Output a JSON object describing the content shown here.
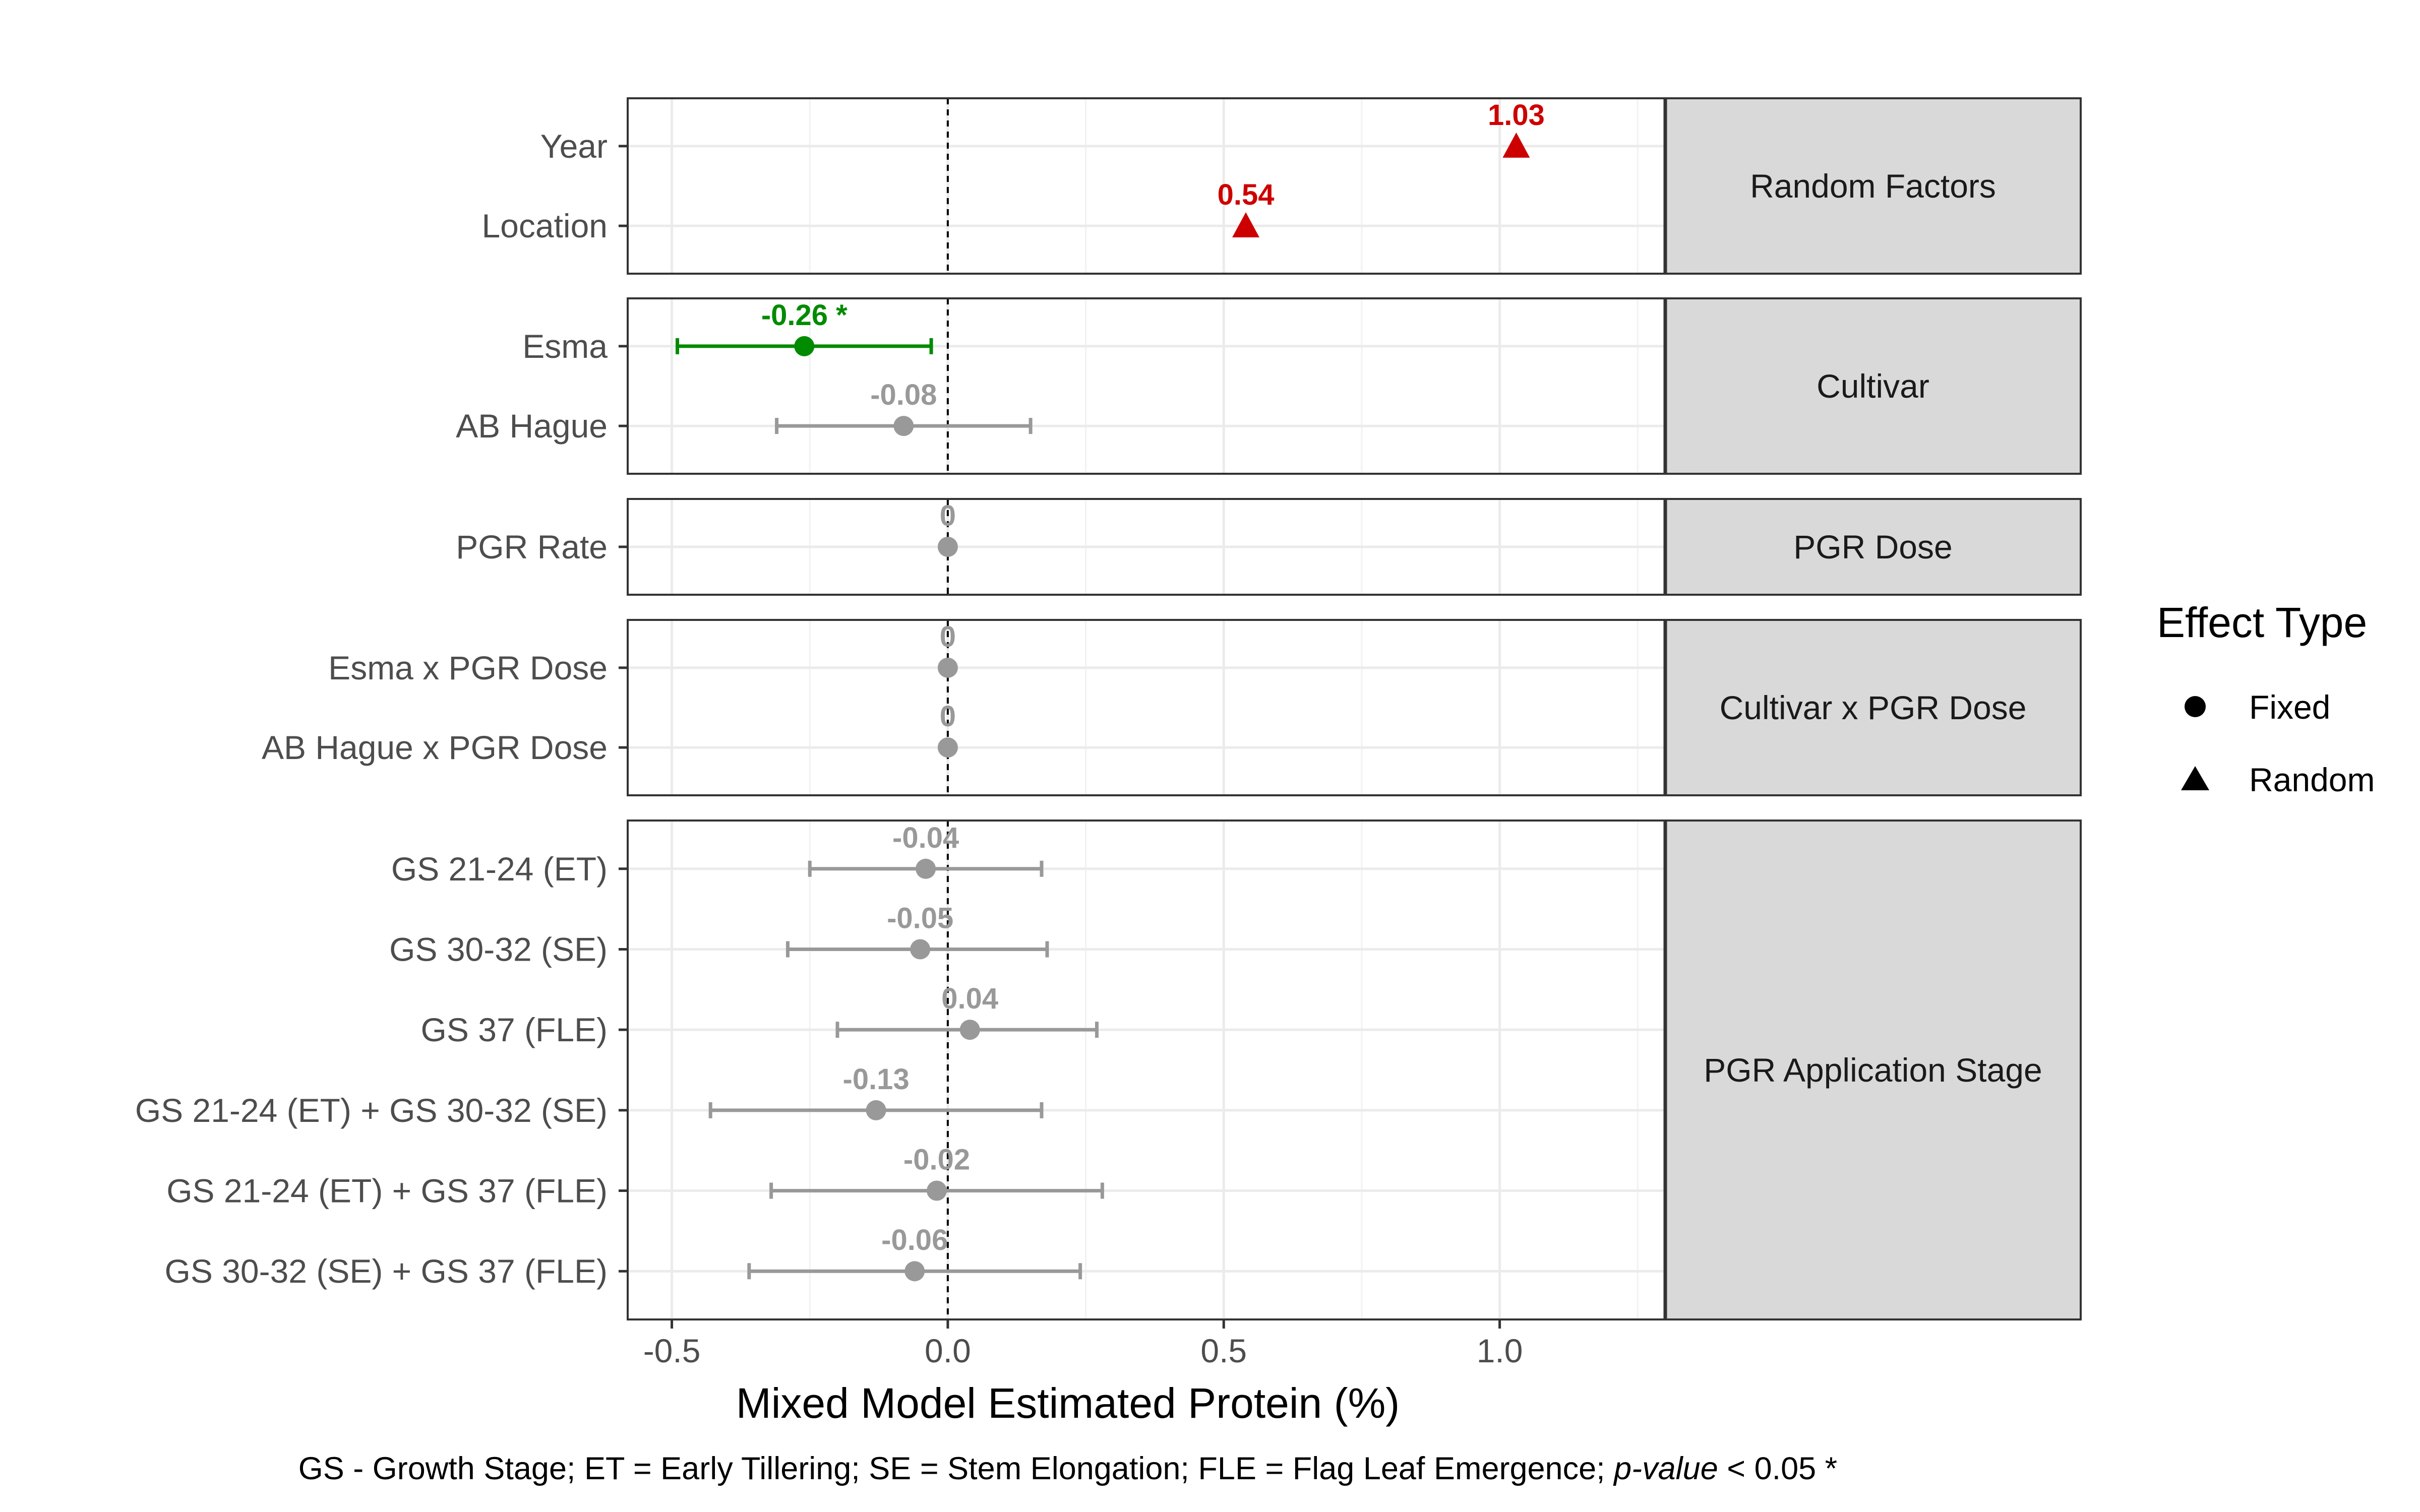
{
  "chart_data": {
    "type": "scatter",
    "subtype": "forest-plot-with-error-bars",
    "xlabel": "Mixed Model Estimated Protein (%)",
    "xlim": [
      -0.58,
      1.3
    ],
    "xticks": [
      -0.5,
      0.0,
      0.5,
      1.0
    ],
    "xtick_labels": [
      "-0.5",
      "0.0",
      "0.5",
      "1.0"
    ],
    "reference_line_x": 0,
    "grid": true,
    "colors": {
      "significant": "#008B00",
      "nonsignificant": "#999999",
      "random": "#CD0000"
    },
    "panels": [
      {
        "facet": "Random Factors",
        "rows": [
          {
            "term": "Year",
            "estimate": 1.03,
            "label": "1.03",
            "effect": "Random",
            "color": "random"
          },
          {
            "term": "Location",
            "estimate": 0.54,
            "label": "0.54",
            "effect": "Random",
            "color": "random"
          }
        ]
      },
      {
        "facet": "Cultivar",
        "rows": [
          {
            "term": "Esma",
            "estimate": -0.26,
            "ci": [
              -0.49,
              -0.03
            ],
            "label": "-0.26 *",
            "effect": "Fixed",
            "color": "significant"
          },
          {
            "term": "AB Hague",
            "estimate": -0.08,
            "ci": [
              -0.31,
              0.15
            ],
            "label": "-0.08",
            "effect": "Fixed",
            "color": "nonsignificant"
          }
        ]
      },
      {
        "facet": "PGR Dose",
        "rows": [
          {
            "term": "PGR Rate",
            "estimate": 0.0,
            "ci": [
              0.0,
              0.0
            ],
            "label": "0",
            "effect": "Fixed",
            "color": "nonsignificant"
          }
        ]
      },
      {
        "facet": "Cultivar x PGR Dose",
        "rows": [
          {
            "term": "Esma x PGR Dose",
            "estimate": 0.0,
            "ci": [
              0.0,
              0.0
            ],
            "label": "0",
            "effect": "Fixed",
            "color": "nonsignificant"
          },
          {
            "term": "AB Hague x PGR Dose",
            "estimate": 0.0,
            "ci": [
              0.0,
              0.0
            ],
            "label": "0",
            "effect": "Fixed",
            "color": "nonsignificant"
          }
        ]
      },
      {
        "facet": "PGR Application Stage",
        "rows": [
          {
            "term": "GS 21-24 (ET)",
            "estimate": -0.04,
            "ci": [
              -0.25,
              0.17
            ],
            "label": "-0.04",
            "effect": "Fixed",
            "color": "nonsignificant"
          },
          {
            "term": "GS 30-32 (SE)",
            "estimate": -0.05,
            "ci": [
              -0.29,
              0.18
            ],
            "label": "-0.05",
            "effect": "Fixed",
            "color": "nonsignificant"
          },
          {
            "term": "GS 37 (FLE)",
            "estimate": 0.04,
            "ci": [
              -0.2,
              0.27
            ],
            "label": "0.04",
            "effect": "Fixed",
            "color": "nonsignificant"
          },
          {
            "term": "GS 21-24 (ET) + GS 30-32 (SE)",
            "estimate": -0.13,
            "ci": [
              -0.43,
              0.17
            ],
            "label": "-0.13",
            "effect": "Fixed",
            "color": "nonsignificant"
          },
          {
            "term": "GS 21-24 (ET) + GS 37 (FLE)",
            "estimate": -0.02,
            "ci": [
              -0.32,
              0.28
            ],
            "label": "-0.02",
            "effect": "Fixed",
            "color": "nonsignificant"
          },
          {
            "term": "GS 30-32 (SE) + GS 37 (FLE)",
            "estimate": -0.06,
            "ci": [
              -0.36,
              0.24
            ],
            "label": "-0.06",
            "effect": "Fixed",
            "color": "nonsignificant"
          }
        ]
      }
    ],
    "legend": {
      "title": "Effect Type",
      "position": "right",
      "entries": [
        {
          "label": "Fixed",
          "shape": "circle"
        },
        {
          "label": "Random",
          "shape": "triangle"
        }
      ]
    }
  },
  "caption": {
    "main": "GS - Growth Stage; ET = Early Tillering; SE = Stem Elongation; FLE = Flag Leaf Emergence; ",
    "italic": "p-value",
    "tail": " < 0.05 *"
  }
}
